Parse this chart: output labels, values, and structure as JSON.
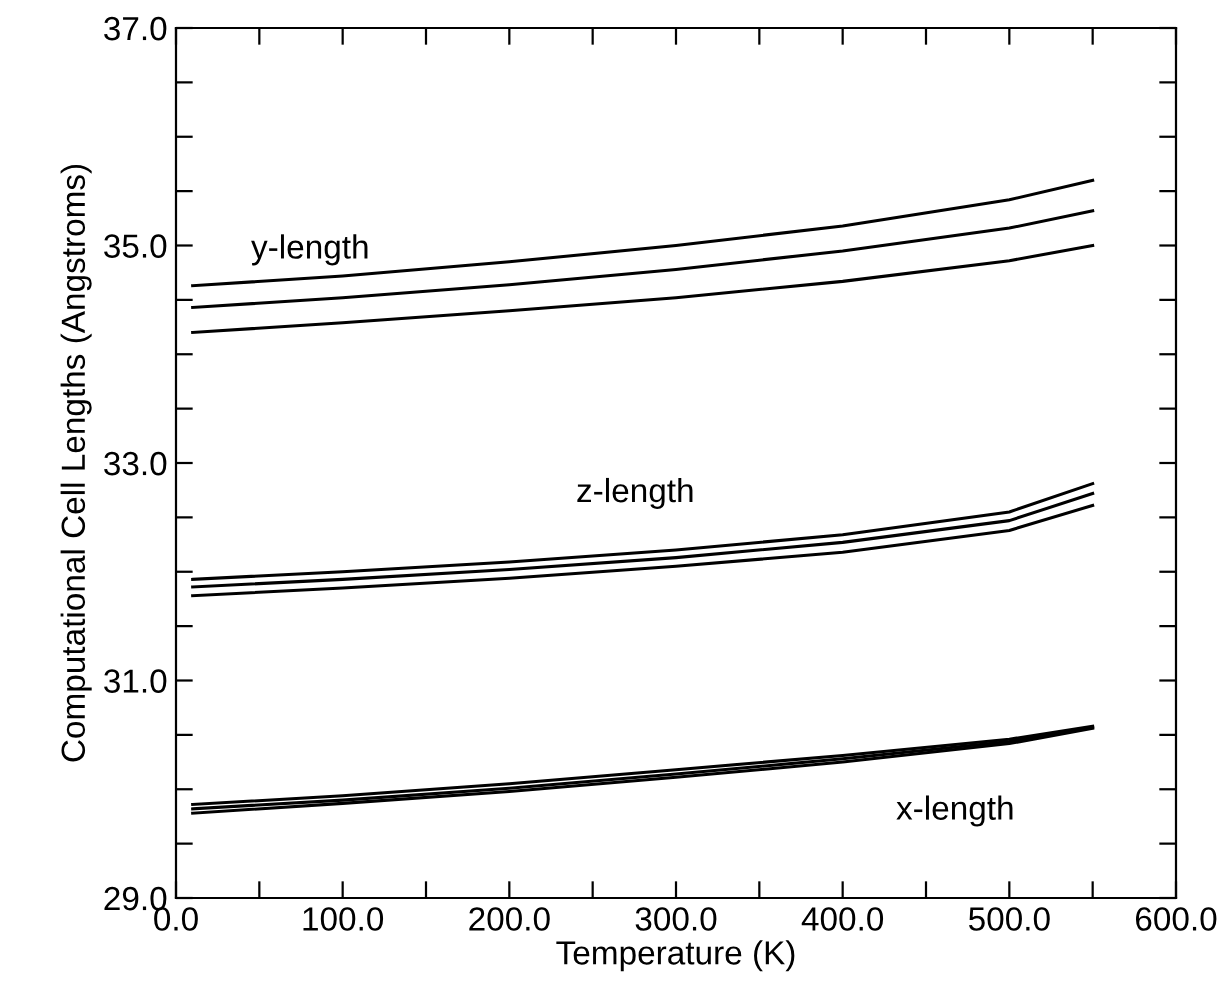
{
  "chart_data": {
    "type": "line",
    "xlabel": "Temperature (K)",
    "ylabel": "Computational Cell Lengths (Angstroms)",
    "x": [
      10,
      100,
      200,
      300,
      400,
      500,
      550
    ],
    "series": [
      {
        "color": "#000000",
        "values": [
          34.63,
          34.72,
          34.85,
          35.0,
          35.18,
          35.42,
          35.6
        ]
      },
      {
        "color": "#000000",
        "values": [
          34.43,
          34.52,
          34.64,
          34.78,
          34.95,
          35.16,
          35.32
        ]
      },
      {
        "color": "#000000",
        "values": [
          34.2,
          34.29,
          34.4,
          34.52,
          34.67,
          34.86,
          35.0
        ]
      },
      {
        "color": "#000000",
        "values": [
          31.93,
          32.0,
          32.09,
          32.2,
          32.34,
          32.55,
          32.81
        ]
      },
      {
        "color": "#000000",
        "values": [
          31.86,
          31.93,
          32.02,
          32.13,
          32.27,
          32.47,
          32.72
        ]
      },
      {
        "color": "#000000",
        "values": [
          31.78,
          31.85,
          31.94,
          32.05,
          32.18,
          32.38,
          32.61
        ]
      },
      {
        "color": "#000000",
        "values": [
          29.86,
          29.94,
          30.05,
          30.18,
          30.31,
          30.46,
          30.58
        ]
      },
      {
        "color": "#000000",
        "values": [
          29.82,
          29.9,
          30.01,
          30.14,
          30.28,
          30.44,
          30.57
        ]
      },
      {
        "color": "#000000",
        "values": [
          29.78,
          29.87,
          29.98,
          30.11,
          30.25,
          30.42,
          30.56
        ]
      }
    ],
    "xlim": [
      0,
      600
    ],
    "xticks": [
      {
        "value": 0,
        "label": "0.0"
      },
      {
        "value": 50,
        "label": null
      },
      {
        "value": 100,
        "label": "100.0"
      },
      {
        "value": 150,
        "label": null
      },
      {
        "value": 200,
        "label": "200.0"
      },
      {
        "value": 250,
        "label": null
      },
      {
        "value": 300,
        "label": "300.0"
      },
      {
        "value": 350,
        "label": null
      },
      {
        "value": 400,
        "label": "400.0"
      },
      {
        "value": 450,
        "label": null
      },
      {
        "value": 500,
        "label": "500.0"
      },
      {
        "value": 550,
        "label": null
      },
      {
        "value": 600,
        "label": "600.0"
      }
    ],
    "ylim": [
      29,
      37
    ],
    "yticks": [
      {
        "value": 29,
        "label": "29.0"
      },
      {
        "value": 29.5,
        "label": null
      },
      {
        "value": 30,
        "label": null
      },
      {
        "value": 30.5,
        "label": null
      },
      {
        "value": 31,
        "label": "31.0"
      },
      {
        "value": 31.5,
        "label": null
      },
      {
        "value": 32,
        "label": null
      },
      {
        "value": 32.5,
        "label": null
      },
      {
        "value": 33,
        "label": "33.0"
      },
      {
        "value": 33.5,
        "label": null
      },
      {
        "value": 34,
        "label": null
      },
      {
        "value": 34.5,
        "label": null
      },
      {
        "value": 35,
        "label": "35.0"
      },
      {
        "value": 35.5,
        "label": null
      },
      {
        "value": 36,
        "label": null
      },
      {
        "value": 36.5,
        "label": null
      },
      {
        "value": 37,
        "label": "37.0"
      }
    ],
    "annotations": [
      "y-length",
      "z-length",
      "x-length"
    ],
    "grid": false,
    "marker": "none",
    "line_style": "solid"
  }
}
